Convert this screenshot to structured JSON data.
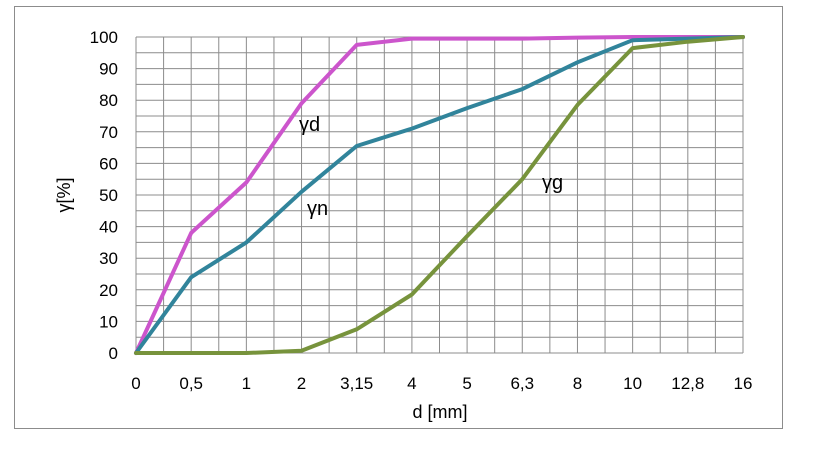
{
  "chart_data": {
    "type": "line",
    "title": "",
    "xlabel": "d [mm]",
    "ylabel": "γ[%]",
    "categories": [
      "0",
      "0,5",
      "1",
      "2",
      "3,15",
      "4",
      "5",
      "6,3",
      "8",
      "10",
      "12,8",
      "16"
    ],
    "y_ticks": [
      "0",
      "10",
      "20",
      "30",
      "40",
      "50",
      "60",
      "70",
      "80",
      "90",
      "100"
    ],
    "ylim": [
      0,
      100
    ],
    "grid": true,
    "legend": "none",
    "series": [
      {
        "name": "γd",
        "color": "#cc55cc",
        "values": [
          0,
          38,
          54,
          79,
          97.5,
          99.5,
          99.5,
          99.5,
          99.8,
          100,
          100,
          100
        ]
      },
      {
        "name": "γn",
        "color": "#31849b",
        "values": [
          0,
          24,
          35,
          51,
          65.5,
          71,
          77.5,
          83.5,
          92,
          99,
          99.5,
          100
        ]
      },
      {
        "name": "γg",
        "color": "#77933c",
        "values": [
          0,
          0,
          0,
          0.7,
          7.5,
          18.5,
          37,
          55,
          78.5,
          96.5,
          98.5,
          100
        ]
      }
    ]
  }
}
